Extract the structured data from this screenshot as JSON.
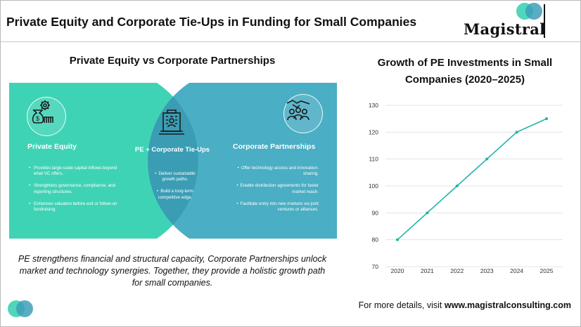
{
  "header": {
    "title": "Private Equity and Corporate Tie-Ups in Funding for Small Companies",
    "logo_text": "Magistral"
  },
  "venn": {
    "title": "Private Equity vs Corporate Partnerships",
    "colors": {
      "left": "#3fd3b6",
      "right": "#4aaec4",
      "overlap": "#3a9db4"
    },
    "left": {
      "title": "Private Equity",
      "icon": "money-bag-gear-icon",
      "bullets": [
        "Provides large-scale capital inflows beyond what VC offers.",
        "Strengthens governance, compliance, and reporting structures.",
        "Enhances valuation before exit or follow-on fundraising."
      ]
    },
    "middle": {
      "title": "PE + Corporate Tie-Ups",
      "icon": "corporate-building-icon",
      "bullets": [
        "Deliver sustainable growth paths.",
        "Build a long-term competitive edge."
      ]
    },
    "right": {
      "title": "Corporate Partnerships",
      "icon": "handshake-people-icon",
      "bullets": [
        "Offer technology access and innovation-sharing.",
        "Enable distribution agreements for faster market reach.",
        "Facilitate entry into new markets via joint ventures or alliances."
      ]
    }
  },
  "summary": "PE strengthens financial and structural capacity, Corporate Partnerships unlock market and technology synergies. Together, they provide a holistic growth path for small companies.",
  "chart_title": "Growth of PE Investments in Small Companies (2020–2025)",
  "chart_data": {
    "type": "line",
    "title": "Growth of PE Investments in Small Companies (2020–2025)",
    "xlabel": "",
    "ylabel": "",
    "categories": [
      "2020",
      "2021",
      "2022",
      "2023",
      "2024",
      "2025"
    ],
    "series": [
      {
        "values": [
          80,
          90,
          100,
          110,
          120,
          125
        ]
      }
    ],
    "ylim": [
      70,
      130
    ],
    "yticks": [
      70,
      80,
      90,
      100,
      110,
      120,
      130
    ],
    "grid": true,
    "line_color": "#1fb3a8"
  },
  "footer": {
    "prefix": "For more details, visit ",
    "link": "www.magistralconsulting.com"
  }
}
